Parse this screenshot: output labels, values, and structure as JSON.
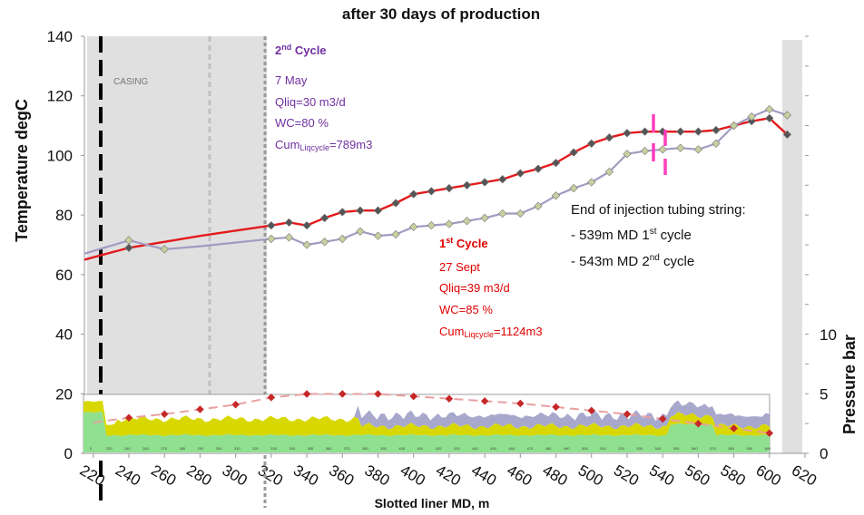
{
  "chart_data": {
    "type": "line",
    "title": "after 30 days of production",
    "xlabel": "Slotted liner MD, m",
    "ylabel": "Temperature degC",
    "y2label": "Pressure bar",
    "xlim": [
      215,
      620
    ],
    "ylim": [
      0,
      140
    ],
    "y2lim": [
      0,
      10
    ],
    "x_ticks": [
      220,
      240,
      260,
      280,
      300,
      320,
      340,
      360,
      380,
      400,
      420,
      440,
      460,
      480,
      500,
      520,
      540,
      560,
      580,
      600,
      620
    ],
    "y_ticks": [
      0,
      20,
      40,
      60,
      80,
      100,
      120,
      140
    ],
    "y2_ticks": [
      0,
      5,
      10
    ],
    "mini_ticks": [
      "0",
      "220",
      "240",
      "260",
      "270",
      "280",
      "290",
      "300",
      "310",
      "320",
      "330",
      "340",
      "350",
      "360",
      "370",
      "380",
      "390",
      "400",
      "410",
      "420",
      "430",
      "440",
      "450",
      "460",
      "470",
      "480",
      "490",
      "500",
      "510",
      "520",
      "530",
      "540",
      "550",
      "560",
      "570",
      "580",
      "590",
      "600"
    ],
    "casing_label": "CASING",
    "series": [
      {
        "color": "#e31a1c",
        "x": [
          215,
          240,
          280,
          320,
          330,
          340,
          350,
          360,
          370,
          380,
          390,
          400,
          410,
          420,
          430,
          440,
          450,
          460,
          470,
          480,
          490,
          500,
          510,
          520,
          530,
          540,
          550,
          560,
          570,
          580,
          590,
          600,
          610
        ],
        "y": [
          65,
          69,
          73,
          76.5,
          77.5,
          76.5,
          79,
          81,
          81.5,
          81.5,
          84,
          87,
          88,
          89,
          90,
          91,
          92,
          94,
          95.5,
          97.5,
          101,
          104,
          106,
          107.5,
          108,
          108,
          108,
          108,
          108.5,
          110,
          111.5,
          112.5,
          107
        ]
      },
      {
        "color": "#a39bc2",
        "x": [
          215,
          240,
          260,
          280,
          320,
          330,
          340,
          350,
          360,
          370,
          380,
          390,
          400,
          410,
          420,
          430,
          440,
          450,
          460,
          470,
          480,
          490,
          500,
          510,
          520,
          530,
          540,
          550,
          560,
          570,
          580,
          590,
          600,
          610
        ],
        "y": [
          67,
          71.5,
          68.5,
          69.5,
          72,
          72.5,
          70,
          71,
          72,
          74.5,
          73,
          73.5,
          76,
          76.5,
          77,
          78,
          79,
          80.5,
          80.5,
          83,
          86.5,
          89,
          91,
          94.5,
          100.5,
          101.5,
          102,
          102.5,
          102,
          104,
          110,
          113,
          115.5,
          113.5
        ]
      }
    ],
    "pressure_series": {
      "color": "#c62828",
      "x": [
        220,
        240,
        260,
        280,
        300,
        320,
        340,
        360,
        380,
        400,
        420,
        440,
        460,
        480,
        500,
        520,
        540,
        560,
        580,
        600
      ],
      "y": [
        2.6,
        3.0,
        3.3,
        3.7,
        4.1,
        4.7,
        5.0,
        5.0,
        5.0,
        4.8,
        4.6,
        4.4,
        4.2,
        3.9,
        3.6,
        3.3,
        2.9,
        2.5,
        2.1,
        1.7
      ]
    },
    "annotations": {
      "cycle2_title": "2",
      "cycle2_sup": "nd",
      "cycle2_title_rest": " Cycle",
      "cycle2_date": "7 May",
      "cycle2_qliq": "Qliq=30 m3/d",
      "cycle2_wc": "WC=80 %",
      "cycle2_cum": "Cum",
      "cycle2_cum_sub": "Liqcycle",
      "cycle2_cum_val": "=789m3",
      "cycle1_title": "1",
      "cycle1_sup": "st",
      "cycle1_title_rest": " Cycle",
      "cycle1_date": "27 Sept",
      "cycle1_qliq": "Qliq=39 m3/d",
      "cycle1_wc": "WC=85 %",
      "cycle1_cum": "Cum",
      "cycle1_cum_sub": "Liqcycle",
      "cycle1_cum_val": "=1124m3",
      "tubing_title": "End of injection tubing string:",
      "tubing_line1_a": "- 539m MD 1",
      "tubing_line1_sup": "st",
      "tubing_line1_b": " cycle",
      "tubing_line2_a": "- 543m MD 2",
      "tubing_line2_sup": "nd",
      "tubing_line2_b": " cycle"
    },
    "colors": {
      "red_line": "#e31a1c",
      "purple_line": "#a39bc2",
      "pressure": "#c62828",
      "casing_shade": "#e0e0e0",
      "tubing_marker": "#ff3fbf",
      "band_green": "#8fe08f",
      "band_yellow": "#d8d800",
      "band_purple": "#9e9ec8"
    }
  }
}
